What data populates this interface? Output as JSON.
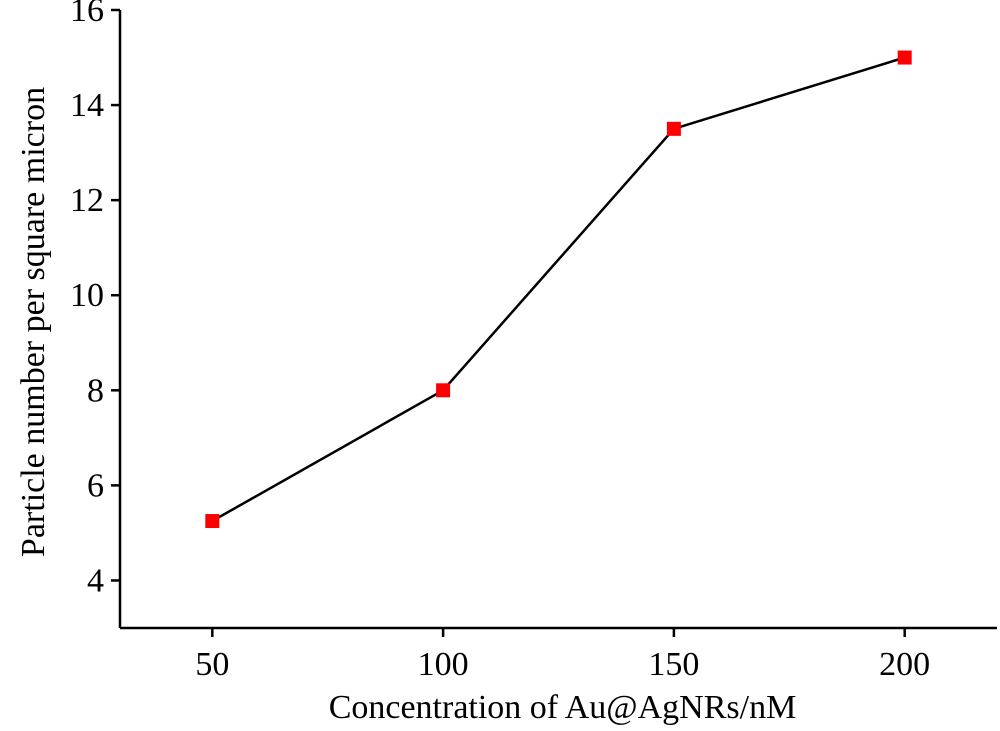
{
  "chart_data": {
    "type": "line",
    "title": "",
    "xlabel": "Concentration of Au@AgNRs/nM",
    "ylabel": "Particle number per square micron",
    "xlim": [
      30,
      220
    ],
    "ylim": [
      3,
      16
    ],
    "xticks": [
      50,
      100,
      150,
      200
    ],
    "yticks": [
      4,
      6,
      8,
      10,
      12,
      14,
      16
    ],
    "grid": false,
    "legend": "none",
    "series": [
      {
        "x": [
          50,
          100,
          150,
          200
        ],
        "y": [
          5.25,
          8.0,
          13.5,
          15.0
        ],
        "line_color": "#000000",
        "marker": "square",
        "marker_color": "#ff0000"
      }
    ]
  }
}
